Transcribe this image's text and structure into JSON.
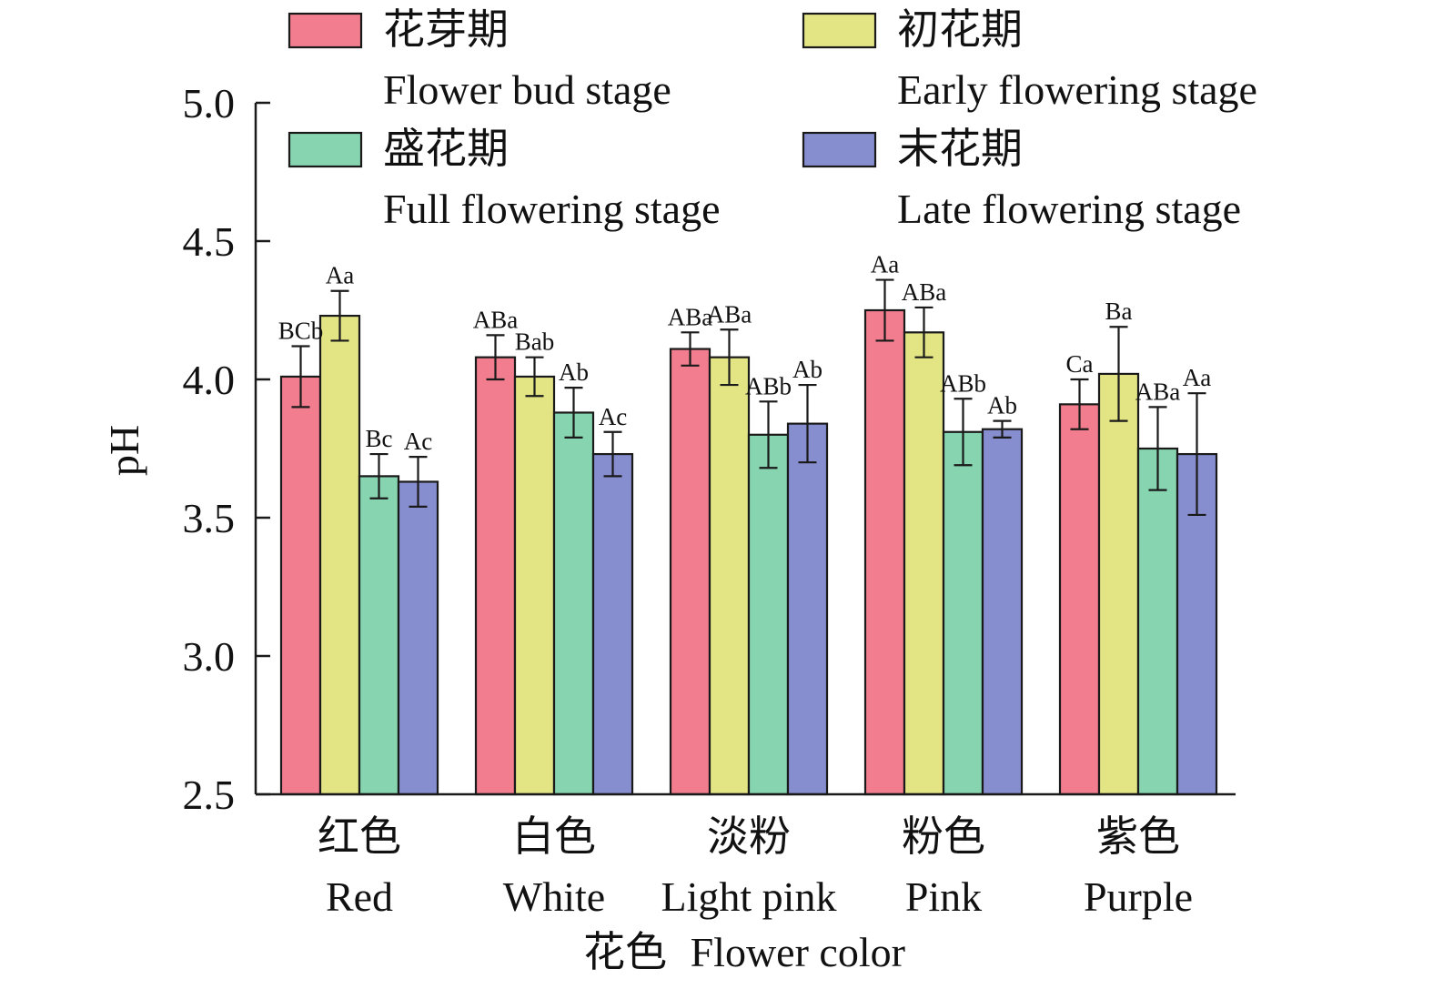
{
  "chart_data": {
    "type": "bar",
    "ylabel": "pH",
    "xlabel_cn": "花色",
    "xlabel_en": "Flower color",
    "ylim": [
      2.5,
      5.0
    ],
    "yticks": [
      "2.5",
      "3.0",
      "3.5",
      "4.0",
      "4.5",
      "5.0"
    ],
    "categories": [
      {
        "cn": "红色",
        "en": "Red"
      },
      {
        "cn": "白色",
        "en": "White"
      },
      {
        "cn": "淡粉",
        "en": "Light pink"
      },
      {
        "cn": "粉色",
        "en": "Pink"
      },
      {
        "cn": "紫色",
        "en": "Purple"
      }
    ],
    "series": [
      {
        "name_cn": "花芽期",
        "name_en": "Flower bud stage",
        "color": "#F27D8E",
        "values": [
          4.01,
          4.08,
          4.11,
          4.25,
          3.91
        ],
        "errors": [
          0.11,
          0.08,
          0.06,
          0.11,
          0.09
        ],
        "labels": [
          "BCb",
          "ABa",
          "ABa",
          "Aa",
          "Ca"
        ]
      },
      {
        "name_cn": "初花期",
        "name_en": "Early flowering stage",
        "color": "#E3E585",
        "values": [
          4.23,
          4.01,
          4.08,
          4.17,
          4.02
        ],
        "errors": [
          0.09,
          0.07,
          0.1,
          0.09,
          0.17
        ],
        "labels": [
          "Aa",
          "Bab",
          "ABa",
          "ABa",
          "Ba"
        ]
      },
      {
        "name_cn": "盛花期",
        "name_en": "Full flowering stage",
        "color": "#86D4B0",
        "values": [
          3.65,
          3.88,
          3.8,
          3.81,
          3.75
        ],
        "errors": [
          0.08,
          0.09,
          0.12,
          0.12,
          0.15
        ],
        "labels": [
          "Bc",
          "Ab",
          "ABb",
          "ABb",
          "ABa"
        ]
      },
      {
        "name_cn": "末花期",
        "name_en": "Late flowering stage",
        "color": "#878ED0",
        "values": [
          3.63,
          3.73,
          3.84,
          3.82,
          3.73
        ],
        "errors": [
          0.09,
          0.08,
          0.14,
          0.03,
          0.22
        ],
        "labels": [
          "Ac",
          "Ac",
          "Ab",
          "Ab",
          "Aa"
        ]
      }
    ]
  }
}
